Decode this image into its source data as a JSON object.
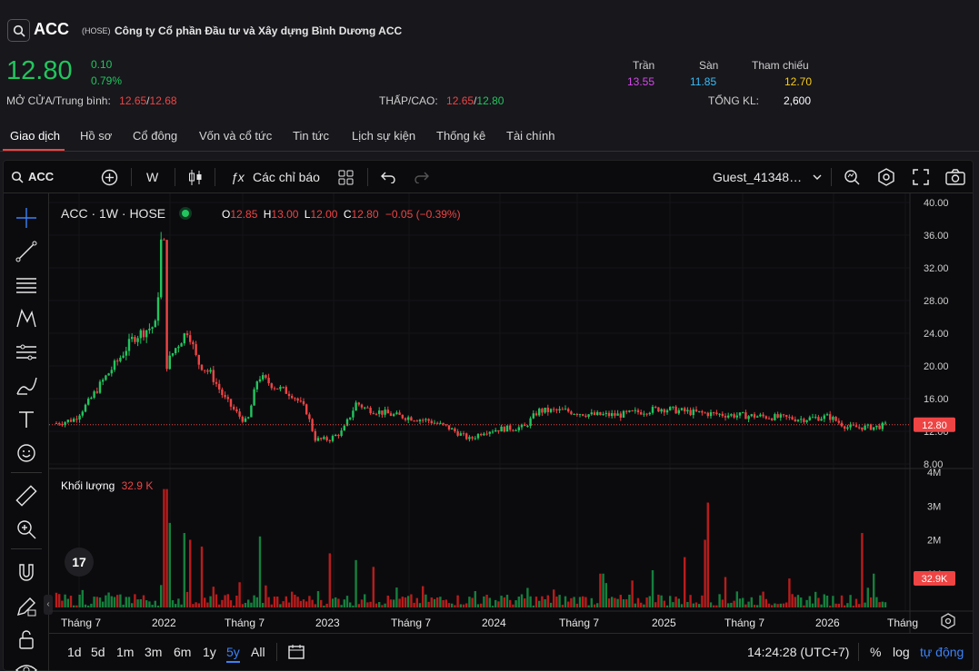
{
  "header": {
    "ticker": "ACC",
    "exchange": "(HOSE)",
    "company": "Công ty Cổ phần Đầu tư và Xây dựng Bình Dương ACC",
    "price": "12.80",
    "change": "0.10",
    "change_pct": "0.79%",
    "open_avg_label": "MỞ CỬA/Trung bình:",
    "open": "12.65",
    "avg": "12.68",
    "low_high_label": "THẤP/CAO:",
    "low": "12.65",
    "high": "12.80",
    "ceiling_label": "Trần",
    "ceiling": "13.55",
    "floor_label": "Sàn",
    "floor": "11.85",
    "ref_label": "Tham chiếu",
    "ref": "12.70",
    "volume_label": "TỔNG KL:",
    "volume": "2,600",
    "colors": {
      "up": "#22c55e",
      "down": "#ef4444",
      "ceiling": "#d946ef",
      "floor": "#38bdf8",
      "ref": "#facc15"
    }
  },
  "tabs": [
    "Giao dịch",
    "Hồ sơ",
    "Cổ đông",
    "Vốn và cổ tức",
    "Tin tức",
    "Lịch sự kiện",
    "Thống kê",
    "Tài chính"
  ],
  "toolbar": {
    "symbol": "ACC",
    "interval": "W",
    "indicators": "Các chỉ báo",
    "user": "Guest_41348…",
    "icons": [
      "search-icon",
      "add-icon",
      "candles-icon",
      "fx-icon",
      "layout-icon",
      "undo-icon",
      "redo-icon",
      "chevron-down-icon",
      "alert-icon",
      "settings-icon",
      "fullscreen-icon",
      "camera-icon"
    ]
  },
  "left_tools": [
    "crosshair-icon",
    "trendline-icon",
    "fib-icon",
    "pattern-icon",
    "forecast-icon",
    "brush-icon",
    "text-icon",
    "emoji-icon",
    "ruler-icon",
    "zoom-icon",
    "magnet-icon",
    "lock-draw-icon",
    "lock-icon",
    "eye-icon"
  ],
  "legend": {
    "title": "ACC · 1W · HOSE",
    "o_label": "O",
    "o": "12.85",
    "h_label": "H",
    "h": "13.00",
    "l_label": "L",
    "l": "12.00",
    "c_label": "C",
    "c": "12.80",
    "chg": "−0.05 (−0.39%)",
    "volume_label": "Khối lượng",
    "volume_value": "32.9 K"
  },
  "chart_data": {
    "type": "candlestick",
    "title": "ACC · 1W · HOSE",
    "price_axis": [
      "40.00",
      "36.00",
      "32.00",
      "28.00",
      "24.00",
      "20.00",
      "16.00",
      "12.00",
      "8.00"
    ],
    "price_range": [
      8,
      40
    ],
    "last_price_tag": "12.80",
    "volume_axis": [
      "4M",
      "3M",
      "2M",
      "1M"
    ],
    "volume_range": [
      0,
      4000000
    ],
    "last_volume_tag": "32.9K",
    "time_axis": [
      "Tháng 7",
      "2022",
      "Tháng 7",
      "2023",
      "Tháng 7",
      "2024",
      "Tháng 7",
      "2025",
      "Tháng 7",
      "2026",
      "Tháng"
    ],
    "price_anchors": [
      [
        0,
        13.0
      ],
      [
        10,
        13.2
      ],
      [
        20,
        13.5
      ],
      [
        35,
        15.5
      ],
      [
        50,
        18.0
      ],
      [
        70,
        21.0
      ],
      [
        85,
        23.5
      ],
      [
        100,
        24.5
      ],
      [
        110,
        25.0
      ],
      [
        115,
        35.0
      ],
      [
        118,
        37.0
      ],
      [
        121,
        20.0
      ],
      [
        130,
        22.0
      ],
      [
        145,
        24.5
      ],
      [
        155,
        20.5
      ],
      [
        170,
        19.0
      ],
      [
        185,
        16.0
      ],
      [
        200,
        14.0
      ],
      [
        210,
        13.0
      ],
      [
        222,
        18.8
      ],
      [
        240,
        17.5
      ],
      [
        260,
        16.5
      ],
      [
        275,
        14.5
      ],
      [
        285,
        11.0
      ],
      [
        300,
        11.0
      ],
      [
        315,
        12.0
      ],
      [
        330,
        15.5
      ],
      [
        340,
        14.8
      ],
      [
        370,
        14.0
      ],
      [
        410,
        13.3
      ],
      [
        430,
        12.5
      ],
      [
        455,
        11.0
      ],
      [
        470,
        12.0
      ],
      [
        490,
        12.3
      ],
      [
        515,
        12.5
      ],
      [
        530,
        14.5
      ],
      [
        560,
        14.5
      ],
      [
        590,
        14.0
      ],
      [
        620,
        14.0
      ],
      [
        665,
        14.8
      ],
      [
        700,
        14.3
      ],
      [
        740,
        14.0
      ],
      [
        780,
        13.8
      ],
      [
        820,
        13.5
      ],
      [
        850,
        13.8
      ],
      [
        870,
        12.5
      ],
      [
        900,
        12.5
      ],
      [
        915,
        12.8
      ]
    ],
    "volume_spikes": [
      [
        120,
        3.5
      ],
      [
        124,
        2.5
      ],
      [
        140,
        2.2
      ],
      [
        148,
        2.0
      ],
      [
        160,
        1.8
      ],
      [
        225,
        2.1
      ],
      [
        300,
        1.6
      ],
      [
        330,
        1.4
      ],
      [
        350,
        1.2
      ],
      [
        600,
        1.0
      ],
      [
        655,
        1.1
      ],
      [
        690,
        1.2
      ],
      [
        718,
        3.1
      ],
      [
        714,
        2.0
      ],
      [
        735,
        0.9
      ],
      [
        885,
        2.2
      ],
      [
        898,
        1.0
      ]
    ]
  },
  "bottom": {
    "ranges": [
      "1d",
      "5d",
      "1m",
      "3m",
      "6m",
      "1y",
      "5y",
      "All"
    ],
    "active_range": "5y",
    "clock": "14:24:28 (UTC+7)",
    "pct": "%",
    "log": "log",
    "auto": "tự động"
  }
}
